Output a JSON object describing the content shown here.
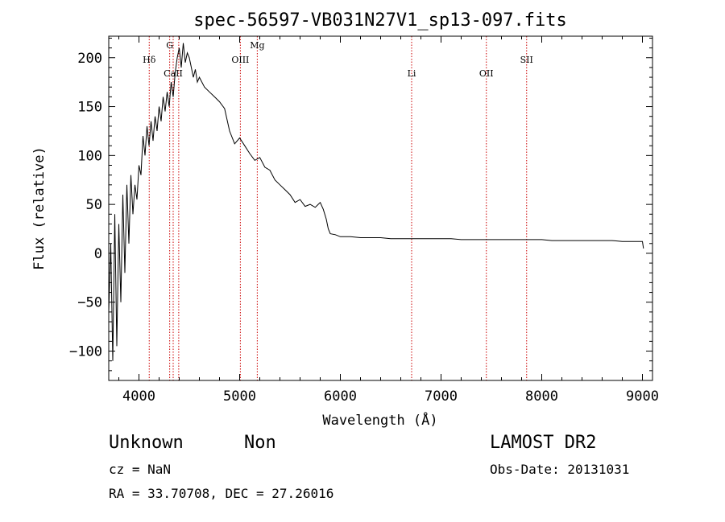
{
  "chart_data": {
    "type": "line",
    "title": "spec-56597-VB031N27V1_sp13-097.fits",
    "xlabel": "Wavelength (Å)",
    "ylabel": "Flux (relative)",
    "xlim": [
      3700,
      9100
    ],
    "ylim": [
      -130,
      222
    ],
    "xticks": [
      4000,
      5000,
      6000,
      7000,
      8000,
      9000
    ],
    "yticks": [
      -100,
      -50,
      0,
      50,
      100,
      150,
      200
    ],
    "ytick_labels": [
      "−100",
      "−50",
      "0",
      "50",
      "100",
      "150",
      "200"
    ],
    "grid": false,
    "line_color": "#000000",
    "marker_color": "#cc0000",
    "lines": [
      {
        "name": "Hδ",
        "x": 4102,
        "label_pos": "upper"
      },
      {
        "name": "G",
        "x": 4305,
        "label_pos": "top"
      },
      {
        "name": "CaII",
        "x": 4340,
        "label_pos": "lower"
      },
      {
        "name": "",
        "x": 4395,
        "label_pos": "none"
      },
      {
        "name": "OIII",
        "x": 5007,
        "label_pos": "upper"
      },
      {
        "name": "Mg",
        "x": 5175,
        "label_pos": "top"
      },
      {
        "name": "Li",
        "x": 6708,
        "label_pos": "lower"
      },
      {
        "name": "OII",
        "x": 7450,
        "label_pos": "lower"
      },
      {
        "name": "SII",
        "x": 7850,
        "label_pos": "upper"
      }
    ],
    "series": [
      {
        "x": [
          3700,
          3720,
          3740,
          3760,
          3780,
          3800,
          3820,
          3840,
          3860,
          3880,
          3900,
          3920,
          3940,
          3960,
          3980,
          4000,
          4020,
          4040,
          4060,
          4080,
          4100,
          4120,
          4140,
          4160,
          4180,
          4200,
          4220,
          4240,
          4260,
          4280,
          4300,
          4320,
          4340,
          4360,
          4380,
          4400,
          4420,
          4440,
          4460,
          4480,
          4500,
          4520,
          4540,
          4560,
          4580,
          4600,
          4650,
          4700,
          4750,
          4800,
          4850,
          4900,
          4950,
          5000,
          5050,
          5100,
          5150,
          5200,
          5250,
          5300,
          5350,
          5400,
          5450,
          5500,
          5550,
          5600,
          5650,
          5700,
          5750,
          5800,
          5830,
          5860,
          5880,
          5900,
          5950,
          6000,
          6100,
          6200,
          6300,
          6400,
          6500,
          6600,
          6700,
          6800,
          6900,
          7000,
          7100,
          7200,
          7300,
          7400,
          7500,
          7600,
          7700,
          7800,
          7900,
          8000,
          8100,
          8200,
          8300,
          8400,
          8500,
          8600,
          8700,
          8800,
          8900,
          9000,
          9010
        ],
        "y": [
          -60,
          10,
          -110,
          40,
          -95,
          30,
          -50,
          60,
          -20,
          70,
          10,
          80,
          40,
          70,
          55,
          90,
          80,
          120,
          100,
          130,
          110,
          135,
          115,
          140,
          125,
          150,
          135,
          160,
          145,
          165,
          150,
          175,
          160,
          185,
          200,
          210,
          190,
          215,
          195,
          205,
          200,
          190,
          180,
          188,
          175,
          180,
          170,
          165,
          160,
          155,
          148,
          125,
          112,
          118,
          110,
          102,
          95,
          98,
          88,
          85,
          75,
          70,
          65,
          60,
          52,
          55,
          48,
          50,
          47,
          52,
          45,
          35,
          25,
          20,
          19,
          17,
          17,
          16,
          16,
          16,
          15,
          15,
          15,
          15,
          15,
          15,
          15,
          14,
          14,
          14,
          14,
          14,
          14,
          14,
          14,
          14,
          13,
          13,
          13,
          13,
          13,
          13,
          13,
          12,
          12,
          12,
          5
        ]
      }
    ]
  },
  "footer": {
    "object_class": "Unknown",
    "object_subclass": "Non",
    "cz": "cz = NaN",
    "coords": "RA =  33.70708, DEC =  27.26016",
    "survey": "LAMOST DR2",
    "obs_date": "Obs-Date: 20131031"
  }
}
